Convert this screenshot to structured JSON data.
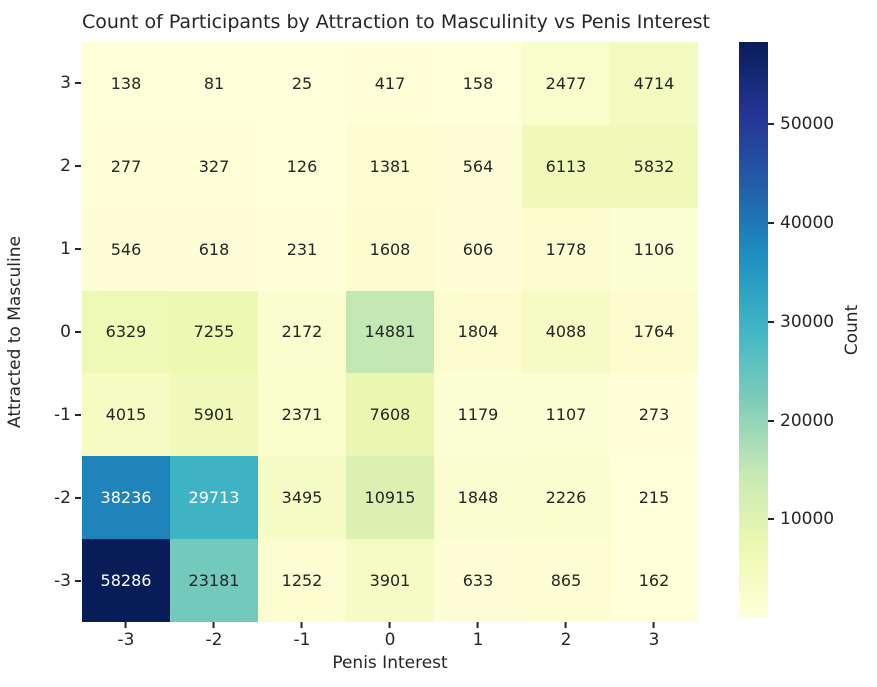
{
  "chart_data": {
    "type": "heatmap",
    "title": "Count of Participants by Attraction to Masculinity vs Penis Interest",
    "xlabel": "Penis Interest",
    "ylabel": "Attracted to Masculine",
    "x_categories": [
      "-3",
      "-2",
      "-1",
      "0",
      "1",
      "2",
      "3"
    ],
    "y_categories": [
      "3",
      "2",
      "1",
      "0",
      "-1",
      "-2",
      "-3"
    ],
    "values": [
      [
        138,
        81,
        25,
        417,
        158,
        2477,
        4714
      ],
      [
        277,
        327,
        126,
        1381,
        564,
        6113,
        5832
      ],
      [
        546,
        618,
        231,
        1608,
        606,
        1778,
        1106
      ],
      [
        6329,
        7255,
        2172,
        14881,
        1804,
        4088,
        1764
      ],
      [
        4015,
        5901,
        2371,
        7608,
        1179,
        1107,
        273
      ],
      [
        38236,
        29713,
        3495,
        10915,
        1848,
        2226,
        215
      ],
      [
        58286,
        23181,
        1252,
        3901,
        633,
        865,
        162
      ]
    ],
    "annotated": true,
    "vmin": 25,
    "vmax": 58286,
    "colormap": "YlGnBu",
    "colormap_stops": [
      "#ffffd9",
      "#edf8b1",
      "#c7e9b4",
      "#7fcdbb",
      "#41b6c4",
      "#1d91c0",
      "#225ea8",
      "#253494",
      "#081d58"
    ],
    "annotation_colors": {
      "on_light": "#262626",
      "on_dark": "#ffffff"
    },
    "legend_position": "right-colorbar",
    "grid": false,
    "colorbar": {
      "label": "Count",
      "ticks": [
        10000,
        20000,
        30000,
        40000,
        50000
      ]
    }
  }
}
